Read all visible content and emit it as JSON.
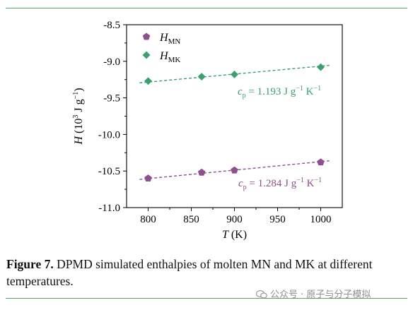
{
  "chart_data": {
    "type": "scatter",
    "xlabel": "T",
    "xunit": "(K)",
    "ylabel": "H",
    "yunit_base": "(10",
    "yunit_exp": "3",
    "yunit_mid": " J g",
    "yunit_exp2": "−1",
    "yunit_end": ")",
    "xlim": [
      775,
      1025
    ],
    "ylim": [
      -11.0,
      -8.5
    ],
    "xticks": [
      800,
      850,
      900,
      950,
      1000
    ],
    "yticks": [
      "-8.5",
      "-9.0",
      "-9.5",
      "-10.0",
      "-10.5",
      "-11.0"
    ],
    "series": [
      {
        "name_main": "H",
        "name_sub": "MN",
        "marker": "pentagon",
        "color": "#8e4f8e",
        "x": [
          800,
          862,
          900,
          1000
        ],
        "y": [
          -10.6,
          -10.52,
          -10.49,
          -10.38
        ],
        "fit_x": [
          790,
          1010
        ],
        "fit_y": [
          -10.615,
          -10.36
        ],
        "fit_label": {
          "c": "c",
          "p": "p",
          "value": " = 1.284 J g",
          "e1": "−1",
          "k": " K",
          "e2": "−1"
        }
      },
      {
        "name_main": "H",
        "name_sub": "MK",
        "marker": "diamond",
        "color": "#3c9f6e",
        "x": [
          800,
          862,
          900,
          1000
        ],
        "y": [
          -9.27,
          -9.21,
          -9.18,
          -9.08
        ],
        "fit_x": [
          790,
          1010
        ],
        "fit_y": [
          -9.295,
          -9.055
        ],
        "fit_label": {
          "c": "c",
          "p": "p",
          "value": " = 1.193 J g",
          "e1": "−1",
          "k": " K",
          "e2": "−1"
        }
      }
    ],
    "legend": "top-left"
  },
  "caption": {
    "label": "Figure 7.",
    "text": " DPMD simulated enthalpies of molten MN and MK at different temperatures."
  },
  "watermark": {
    "text": "公众号 · 原子与分子模拟"
  }
}
